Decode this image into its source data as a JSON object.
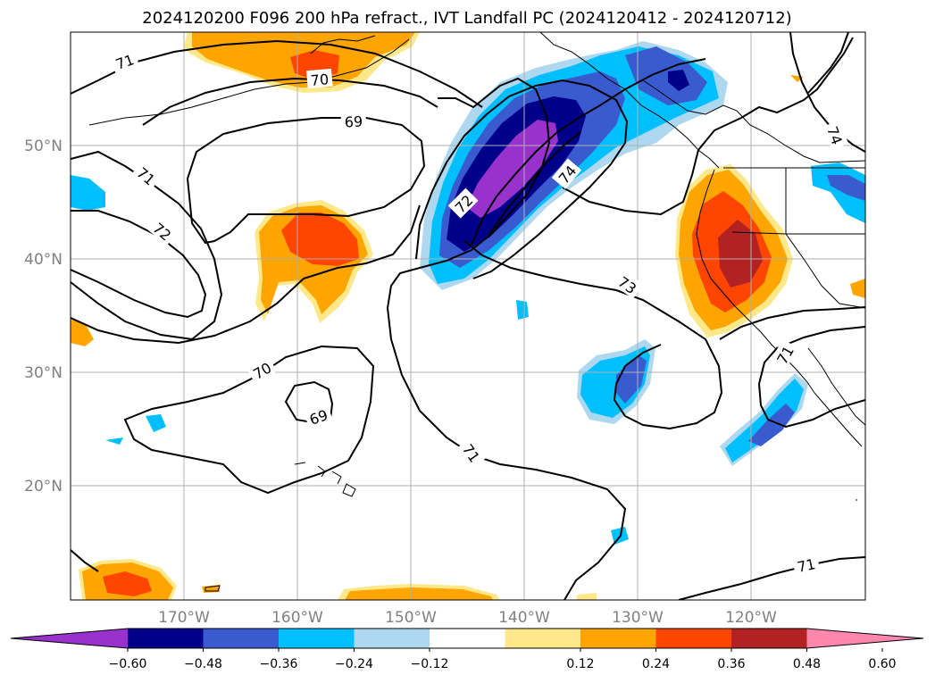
{
  "title": "2024120200 F096 200 hPa refract., IVT Landfall PC (2024120412 - 2024120712)",
  "map": {
    "lon_ticks": [
      "170°W",
      "160°W",
      "150°W",
      "140°W",
      "130°W",
      "120°W"
    ],
    "lat_ticks": [
      "50°N",
      "40°N",
      "30°N",
      "20°N"
    ],
    "contour_labels": [
      "71",
      "70",
      "69",
      "71",
      "72",
      "72",
      "74",
      "73",
      "74",
      "70",
      "69",
      "71",
      "71",
      "71"
    ],
    "colorbar": {
      "ticks": [
        "−0.60",
        "−0.48",
        "−0.36",
        "−0.24",
        "−0.12",
        "0.12",
        "0.24",
        "0.36",
        "0.48",
        "0.60"
      ],
      "colors": [
        "#9932cc",
        "#00008b",
        "#3a5bd0",
        "#00bfff",
        "#add8f0",
        "#ffffff",
        "#ffe88a",
        "#ffa500",
        "#ff4500",
        "#b22222",
        "#ff86ad"
      ]
    },
    "palette": {
      "purple": "#9932cc",
      "navy": "#00008b",
      "royal": "#3a5bd0",
      "sky": "#00bfff",
      "lightblue": "#add8f0",
      "lightyellow": "#ffe88a",
      "orange": "#ffa500",
      "orangered": "#ff4500",
      "firebrick": "#b22222"
    }
  }
}
